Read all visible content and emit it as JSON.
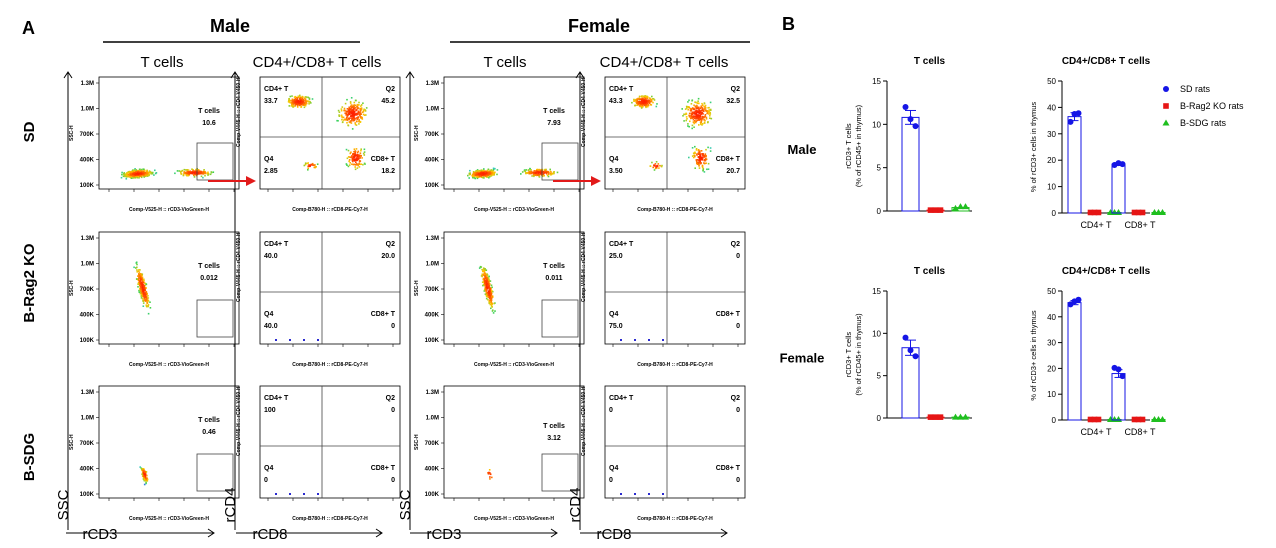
{
  "panel_labels": {
    "a": "A",
    "b": "B"
  },
  "groups": [
    "Male",
    "Female"
  ],
  "rows": [
    "SD",
    "B-Rag2 KO",
    "B-SDG"
  ],
  "col_titles": [
    "T cells",
    "CD4+/CD8+ T cells",
    "T cells",
    "CD4+/CD8+ T cells"
  ],
  "axis_names": {
    "ssc": "SSC",
    "rcd3": "rCD3",
    "rcd4": "rCD4",
    "rcd8": "rCD8"
  },
  "flow_axes": {
    "tcell_x": "Comp-V525-H :: rCD3-VioGreen-H",
    "tcell_y": "SSC-H",
    "cd_x": "Comp-B780-H :: rCD8-PE-Cy7-H",
    "cd_y": "Comp-V445-H :: rCD4-V450-H",
    "ssc_ticks": [
      "1.3M",
      "1.0M",
      "700K",
      "400K",
      "100K"
    ]
  },
  "gate_label": "T cells",
  "quadrant_labels": {
    "q1": "CD4+ T",
    "q2": "Q2",
    "q3": "Q4",
    "q4": "CD8+ T"
  },
  "flow_values": {
    "male": [
      {
        "t": "10.6",
        "q": [
          "33.7",
          "45.2",
          "2.85",
          "18.2"
        ]
      },
      {
        "t": "0.012",
        "q": [
          "40.0",
          "20.0",
          "40.0",
          "0"
        ]
      },
      {
        "t": "0.46",
        "q": [
          "100",
          "0",
          "0",
          "0"
        ]
      }
    ],
    "female": [
      {
        "t": "7.93",
        "q": [
          "43.3",
          "32.5",
          "3.50",
          "20.7"
        ]
      },
      {
        "t": "0.011",
        "q": [
          "25.0",
          "0",
          "75.0",
          "0"
        ]
      },
      {
        "t": "3.12",
        "q": [
          "0",
          "0",
          "0",
          "0"
        ]
      }
    ]
  },
  "colors": {
    "sd": "#1515e6",
    "rag2": "#e61515",
    "sdg": "#1fbf1f",
    "arrow": "#e21a1a"
  },
  "chart_data": [
    {
      "type": "bar",
      "title": "T cells",
      "row_label": "Male",
      "ylabel": "rCD3+ T cells\n(% of rCD45+ in thymus)",
      "ylim": [
        0,
        15
      ],
      "yticks": [
        0,
        5,
        10,
        15
      ],
      "categories": [
        "SD rats",
        "B-Rag2 KO rats",
        "B-SDG rats"
      ],
      "values": [
        10.8,
        0.1,
        0.4
      ],
      "errors": [
        0.8,
        0,
        0
      ],
      "points": [
        [
          12.0,
          10.6,
          9.8
        ],
        [
          0.1,
          0.1,
          0.1
        ],
        [
          0.3,
          0.5,
          0.5
        ]
      ]
    },
    {
      "type": "bar",
      "title": "CD4+/CD8+ T cells",
      "ylabel": "% of rCD3+ cells in thymus",
      "ylim": [
        0,
        50
      ],
      "yticks": [
        0,
        10,
        20,
        30,
        40,
        50
      ],
      "categories": [
        "CD4+ T",
        "CD8+ T"
      ],
      "legend": [
        "SD rats",
        "B-Rag2 KO rats",
        "B-SDG rats"
      ],
      "series": [
        {
          "name": "SD rats",
          "values": [
            36.5,
            18.5
          ],
          "errors": [
            1.5,
            0.5
          ],
          "points": [
            [
              34.5,
              37.5,
              37.8
            ],
            [
              18.2,
              18.9,
              18.5
            ]
          ]
        },
        {
          "name": "B-Rag2 KO rats",
          "values": [
            0.2,
            0.2
          ],
          "errors": [
            0,
            0
          ],
          "points": [
            [
              0.2,
              0.2,
              0.2
            ],
            [
              0.2,
              0.2,
              0.2
            ]
          ]
        },
        {
          "name": "B-SDG rats",
          "values": [
            0.2,
            0.2
          ],
          "errors": [
            0,
            0
          ],
          "points": [
            [
              0.2,
              0.2,
              0.2
            ],
            [
              0.2,
              0.2,
              0.2
            ]
          ]
        }
      ]
    },
    {
      "type": "bar",
      "title": "T cells",
      "row_label": "Female",
      "ylabel": "rCD3+ T cells\n(% of rCD45+ in thymus)",
      "ylim": [
        0,
        15
      ],
      "yticks": [
        0,
        5,
        10,
        15
      ],
      "categories": [
        "SD rats",
        "B-Rag2 KO rats",
        "B-SDG rats"
      ],
      "values": [
        8.3,
        0.1,
        0.1
      ],
      "errors": [
        0.9,
        0,
        0
      ],
      "points": [
        [
          9.5,
          8.0,
          7.3
        ],
        [
          0.1,
          0.1,
          0.1
        ],
        [
          0.1,
          0.1,
          0.1
        ]
      ]
    },
    {
      "type": "bar",
      "title": "CD4+/CD8+ T cells",
      "ylabel": "% of rCD3+ cells in thymus",
      "ylim": [
        0,
        50
      ],
      "yticks": [
        0,
        10,
        20,
        30,
        40,
        50
      ],
      "categories": [
        "CD4+ T",
        "CD8+ T"
      ],
      "series": [
        {
          "name": "SD rats",
          "values": [
            45.5,
            18.0
          ],
          "errors": [
            0.8,
            1.5
          ],
          "points": [
            [
              44.8,
              46.0,
              46.6
            ],
            [
              20.2,
              19.6,
              17.0
            ]
          ]
        },
        {
          "name": "B-Rag2 KO rats",
          "values": [
            0.2,
            0.2
          ],
          "errors": [
            0,
            0
          ],
          "points": [
            [
              0.2,
              0.2,
              0.2
            ],
            [
              0.2,
              0.2,
              0.2
            ]
          ]
        },
        {
          "name": "B-SDG rats",
          "values": [
            0.2,
            0.2
          ],
          "errors": [
            0,
            0
          ],
          "points": [
            [
              0.2,
              0.2,
              0.2
            ],
            [
              0.2,
              0.2,
              0.2
            ]
          ]
        }
      ]
    }
  ]
}
